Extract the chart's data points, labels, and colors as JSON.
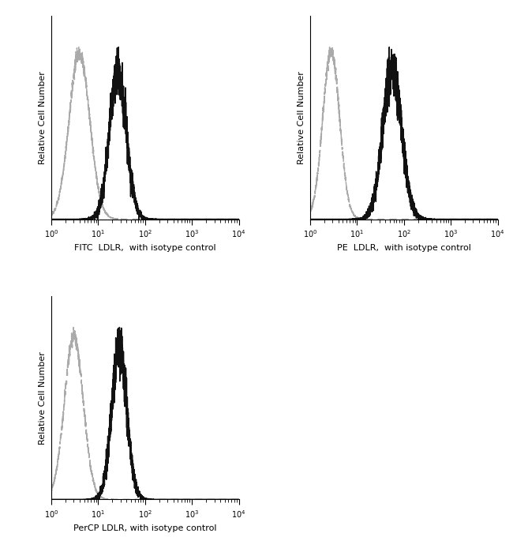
{
  "panels": [
    {
      "xlabel": "FITC  LDLR,  with isotype control",
      "isotype_peak_log": 0.6,
      "isotype_sigma": 0.22,
      "antibody_peak_log": 1.42,
      "antibody_sigma": 0.18
    },
    {
      "xlabel": "PE  LDLR,  with isotype control",
      "isotype_peak_log": 0.45,
      "isotype_sigma": 0.18,
      "antibody_peak_log": 1.75,
      "antibody_sigma": 0.2
    },
    {
      "xlabel": "PerCP LDLR, with isotype control",
      "isotype_peak_log": 0.48,
      "isotype_sigma": 0.2,
      "antibody_peak_log": 1.45,
      "antibody_sigma": 0.16
    }
  ],
  "ylabel": "Relative Cell Number",
  "xlim_log": [
    0.0,
    4.0
  ],
  "background_color": "#ffffff",
  "isotype_color": "#aaaaaa",
  "antibody_color": "#111111",
  "isotype_lw": 1.1,
  "antibody_lw": 1.1
}
